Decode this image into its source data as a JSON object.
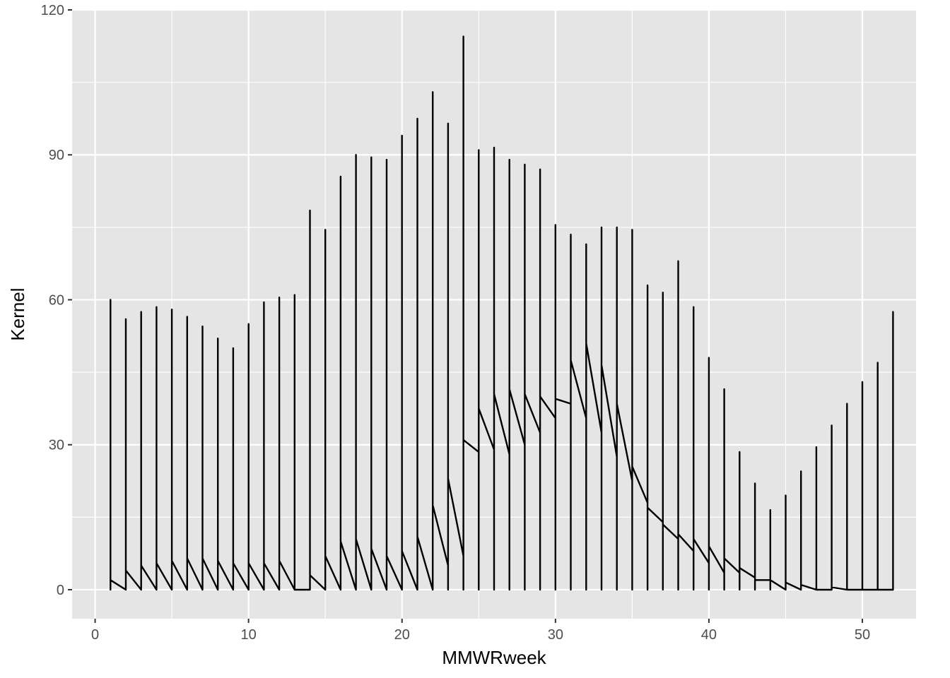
{
  "chart_data": {
    "type": "line",
    "title": "",
    "xlabel": "MMWRweek",
    "ylabel": "Kernel",
    "xlim": [
      -1.5,
      53.5
    ],
    "ylim": [
      -6,
      120
    ],
    "xticks": [
      0,
      10,
      20,
      30,
      40,
      50
    ],
    "yticks": [
      0,
      30,
      60,
      90,
      120
    ],
    "xtick_labels": [
      "0",
      "10",
      "20",
      "30",
      "40",
      "50"
    ],
    "ytick_labels": [
      "0",
      "30",
      "60",
      "90",
      "120"
    ],
    "grid": true,
    "legend": "none",
    "colors": {
      "panel": "#e5e5e5",
      "grid": "#ffffff",
      "line": "#000000",
      "axis_text": "#4d4d4d"
    },
    "series": [
      {
        "weeks": [
          1,
          2,
          3,
          4,
          5,
          6,
          7,
          8,
          9,
          10,
          11,
          12,
          13,
          14,
          15,
          16,
          17,
          18,
          19,
          20,
          21,
          22,
          23,
          24,
          25,
          26,
          27,
          28,
          29,
          30,
          31,
          32,
          33,
          34,
          35,
          36,
          37,
          38,
          39,
          40,
          41,
          42,
          43,
          44,
          45,
          46,
          47,
          48,
          49,
          50,
          51,
          52
        ],
        "peak": [
          60,
          56,
          57.5,
          58.5,
          58,
          56.5,
          54.5,
          52,
          50,
          55,
          59.5,
          60.5,
          61,
          78.5,
          74.5,
          85.5,
          90,
          89.5,
          89,
          94,
          97.5,
          103,
          96.5,
          114.5,
          91,
          91.5,
          89,
          88,
          87,
          75.5,
          73.5,
          71.5,
          75,
          75,
          74.5,
          63,
          61.5,
          68,
          58.5,
          48,
          41.5,
          28.5,
          22,
          16.5,
          19.5,
          24.5,
          29.5,
          34,
          38.5,
          43,
          47,
          57.5
        ],
        "floor": [
          0,
          0,
          0,
          0,
          0,
          0,
          0,
          0,
          0,
          0,
          0,
          0,
          0,
          0,
          0,
          0,
          0,
          0,
          0,
          0,
          0,
          0,
          5,
          7,
          28.5,
          29,
          28,
          30,
          32.5,
          35.5,
          38.5,
          35.5,
          32.5,
          27.5,
          22.5,
          18,
          14,
          10.5,
          8,
          5.5,
          3.5,
          3.5,
          2.5,
          2,
          0,
          0,
          0,
          0,
          0,
          0,
          0,
          0
        ],
        "end": [
          2,
          4,
          5,
          5.5,
          6,
          6.5,
          6.5,
          6,
          5.5,
          5.5,
          5.5,
          6,
          0,
          3,
          7,
          10,
          10.5,
          8.5,
          7,
          8,
          11,
          17.5,
          23,
          31,
          37.5,
          40.5,
          41.5,
          40.5,
          40,
          39.5,
          47.5,
          51,
          46.5,
          38.5,
          25.5,
          17,
          13.5,
          11.5,
          10.5,
          9,
          6.5,
          4.5,
          2,
          2,
          1.5,
          1,
          0,
          0.5,
          0,
          0,
          0,
          0
        ]
      }
    ]
  }
}
